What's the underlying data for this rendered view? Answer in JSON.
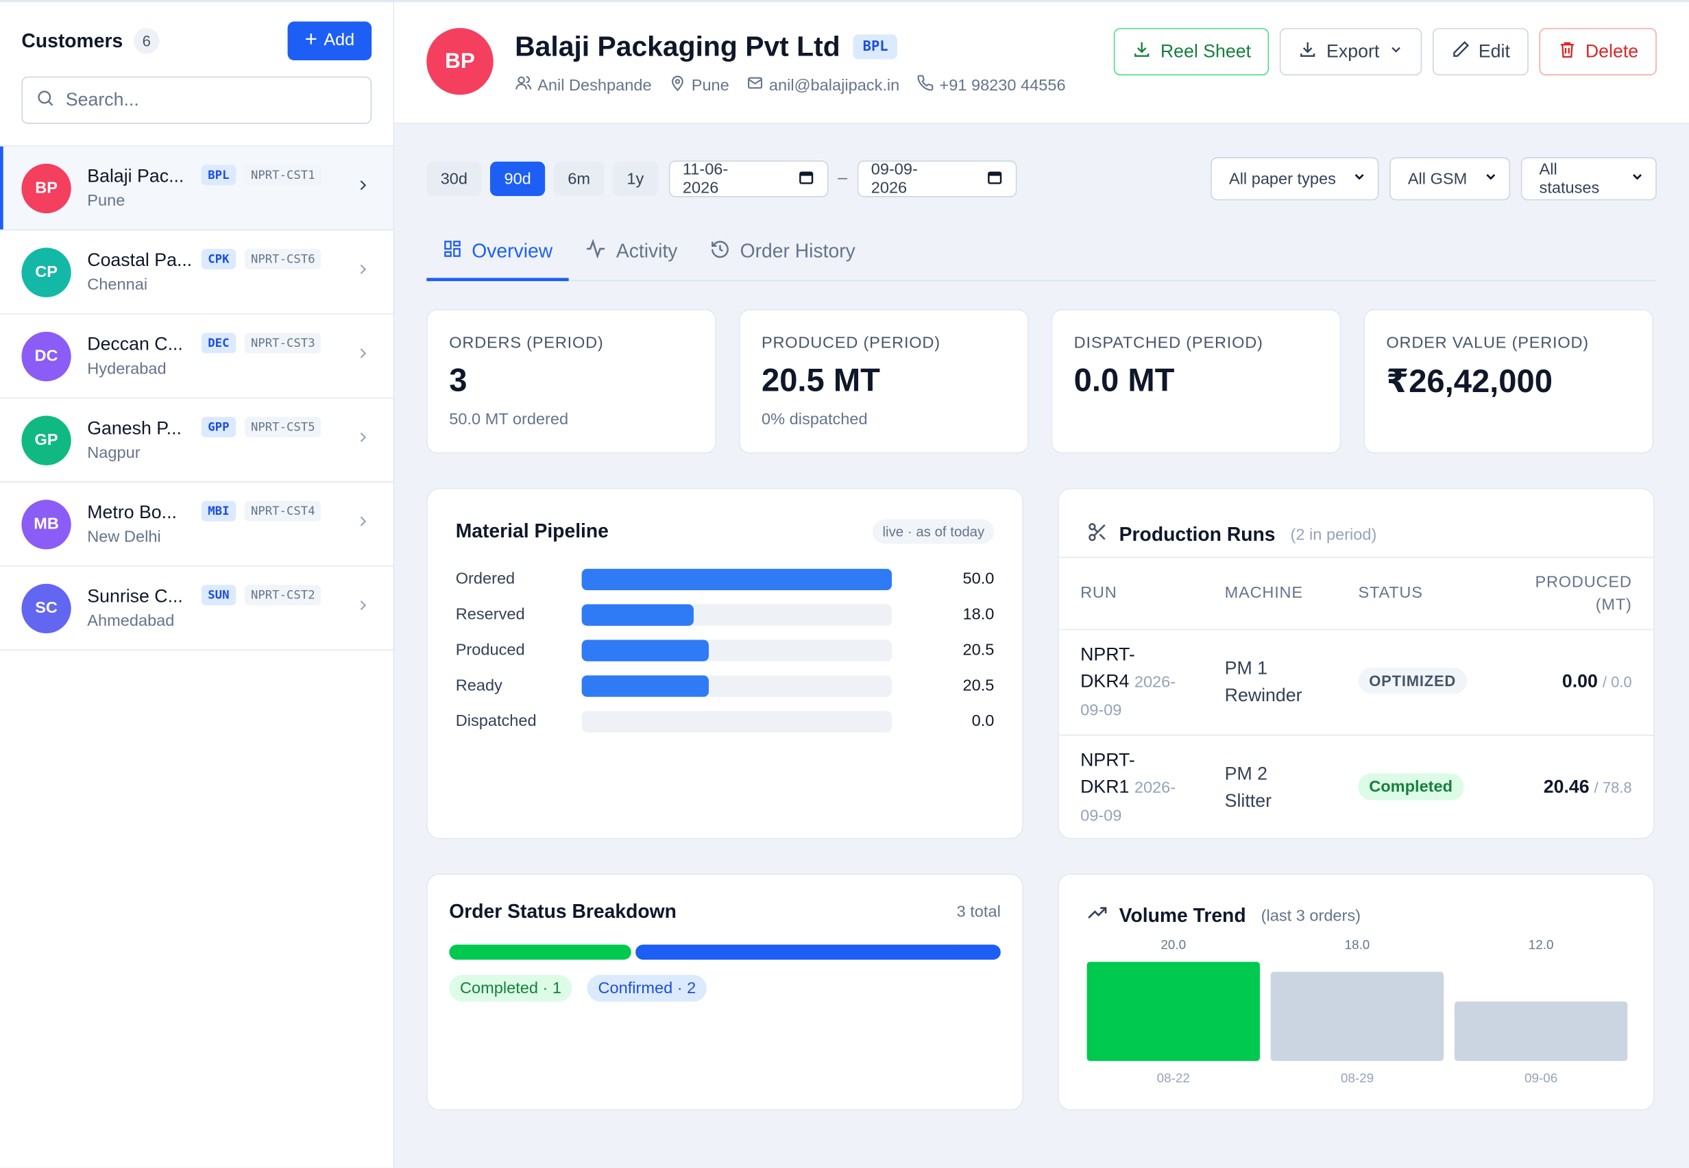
{
  "sidebar": {
    "title": "Customers",
    "count": "6",
    "add_label": "Add",
    "search_placeholder": "Search...",
    "customers": [
      {
        "initials": "BP",
        "name": "Balaji Pac...",
        "city": "Pune",
        "abbr": "BPL",
        "code": "NPRT-CST1",
        "color": "#f43f5e",
        "active": true
      },
      {
        "initials": "CP",
        "name": "Coastal Pa...",
        "city": "Chennai",
        "abbr": "CPK",
        "code": "NPRT-CST6",
        "color": "#14b8a6",
        "active": false
      },
      {
        "initials": "DC",
        "name": "Deccan C...",
        "city": "Hyderabad",
        "abbr": "DEC",
        "code": "NPRT-CST3",
        "color": "#8b5cf6",
        "active": false
      },
      {
        "initials": "GP",
        "name": "Ganesh P...",
        "city": "Nagpur",
        "abbr": "GPP",
        "code": "NPRT-CST5",
        "color": "#10b981",
        "active": false
      },
      {
        "initials": "MB",
        "name": "Metro Bo...",
        "city": "New Delhi",
        "abbr": "MBI",
        "code": "NPRT-CST4",
        "color": "#8b5cf6",
        "active": false
      },
      {
        "initials": "SC",
        "name": "Sunrise C...",
        "city": "Ahmedabad",
        "abbr": "SUN",
        "code": "NPRT-CST2",
        "color": "#6366f1",
        "active": false
      }
    ]
  },
  "header": {
    "initials": "BP",
    "name": "Balaji Packaging Pvt Ltd",
    "badge": "BPL",
    "contact": "Anil Deshpande",
    "city": "Pune",
    "email": "anil@balajipack.in",
    "phone": "+91 98230 44556",
    "actions": {
      "reel_sheet": "Reel Sheet",
      "export": "Export",
      "edit": "Edit",
      "delete": "Delete"
    }
  },
  "filters": {
    "ranges": [
      "30d",
      "90d",
      "6m",
      "1y"
    ],
    "active_range": "90d",
    "date_from": "11-06-2026",
    "date_sep": "–",
    "date_to": "09-09-2026",
    "paper_types": "All paper types",
    "gsm": "All GSM",
    "statuses": "All statuses"
  },
  "tabs": {
    "overview": "Overview",
    "activity": "Activity",
    "history": "Order History"
  },
  "kpis": [
    {
      "label": "ORDERS (PERIOD)",
      "value": "3",
      "sub": "50.0 MT ordered"
    },
    {
      "label": "PRODUCED (PERIOD)",
      "value": "20.5 MT",
      "sub": "0% dispatched"
    },
    {
      "label": "DISPATCHED (PERIOD)",
      "value": "0.0 MT",
      "sub": ""
    },
    {
      "label": "ORDER VALUE (PERIOD)",
      "value": "₹26,42,000",
      "sub": ""
    }
  ],
  "pipeline": {
    "title": "Material Pipeline",
    "badge": "live · as of today",
    "max": 50,
    "rows": [
      {
        "label": "Ordered",
        "value": 50.0,
        "display": "50.0"
      },
      {
        "label": "Reserved",
        "value": 18.0,
        "display": "18.0"
      },
      {
        "label": "Produced",
        "value": 20.5,
        "display": "20.5"
      },
      {
        "label": "Ready",
        "value": 20.5,
        "display": "20.5"
      },
      {
        "label": "Dispatched",
        "value": 0.0,
        "display": "0.0"
      }
    ]
  },
  "runs": {
    "title": "Production Runs",
    "count": "(2 in period)",
    "columns": [
      "RUN",
      "MACHINE",
      "STATUS",
      "PRODUCED (MT)"
    ],
    "rows": [
      {
        "id_a": "NPRT-",
        "id_b": "DKR4",
        "date_a": "2026-",
        "date_b": "09-09",
        "mach_a": "PM 1",
        "mach_b": "Rewinder",
        "status": "OPTIMIZED",
        "produced": "0.00",
        "target": "/ 0.0"
      },
      {
        "id_a": "NPRT-",
        "id_b": "DKR1",
        "date_a": "2026-",
        "date_b": "09-09",
        "mach_a": "PM 2",
        "mach_b": "Slitter",
        "status": "Completed",
        "produced": "20.46",
        "target": "/ 78.8"
      }
    ]
  },
  "order_status": {
    "title": "Order Status Breakdown",
    "total": "3 total",
    "segments": [
      {
        "label": "Completed · 1",
        "count": 1,
        "color": "#00c950"
      },
      {
        "label": "Confirmed · 2",
        "count": 2,
        "color": "#1d5ff5"
      }
    ]
  },
  "volume_trend": {
    "title": "Volume Trend",
    "subtitle": "(last 3 orders)"
  },
  "chart_data": {
    "type": "bar",
    "categories": [
      "08-22",
      "08-29",
      "09-06"
    ],
    "values": [
      20.0,
      18.0,
      12.0
    ],
    "value_labels": [
      "20.0",
      "18.0",
      "12.0"
    ],
    "colors": [
      "#00c950",
      "#cbd5e1",
      "#cbd5e1"
    ],
    "title": "Volume Trend",
    "ylim": [
      0,
      20
    ]
  }
}
